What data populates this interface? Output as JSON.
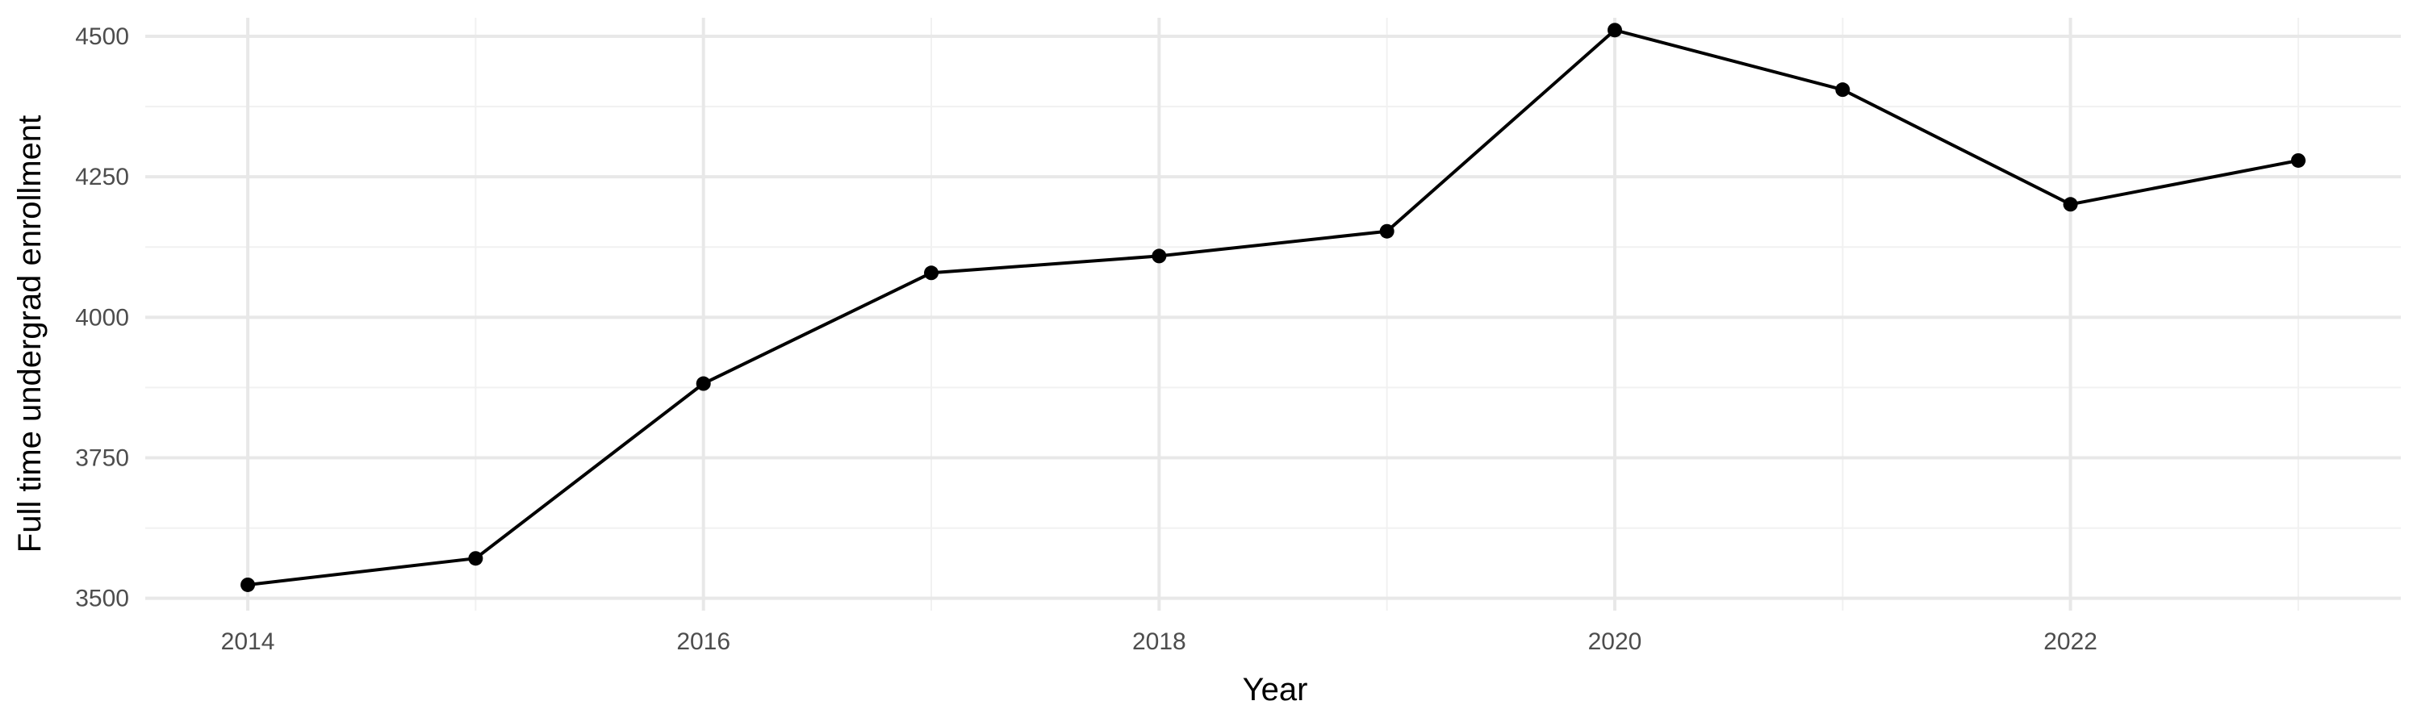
{
  "chart_data": {
    "type": "line",
    "title": "",
    "xlabel": "Year",
    "ylabel": "Full time undergrad enrollment",
    "x": [
      2014,
      2015,
      2016,
      2017,
      2018,
      2019,
      2020,
      2021,
      2022,
      2023
    ],
    "series": [
      {
        "values": [
          3524,
          3571,
          3882,
          4079,
          4109,
          4153,
          4511,
          4405,
          4201,
          4279
        ]
      }
    ],
    "xlim": [
      2013.55,
      2023.45
    ],
    "ylim": [
      3478,
      4533
    ],
    "x_ticks": [
      2014,
      2016,
      2018,
      2020,
      2022
    ],
    "x_tick_labels": [
      "2014",
      "2016",
      "2018",
      "2020",
      "2022"
    ],
    "y_ticks": [
      3500,
      3750,
      4000,
      4250,
      4500
    ],
    "y_tick_labels": [
      "3500",
      "3750",
      "4000",
      "4250",
      "4500"
    ],
    "grid": true,
    "legend": "none",
    "colors": {
      "line": "#000000",
      "grid": "#ebebeb",
      "background": "#ffffff"
    }
  }
}
